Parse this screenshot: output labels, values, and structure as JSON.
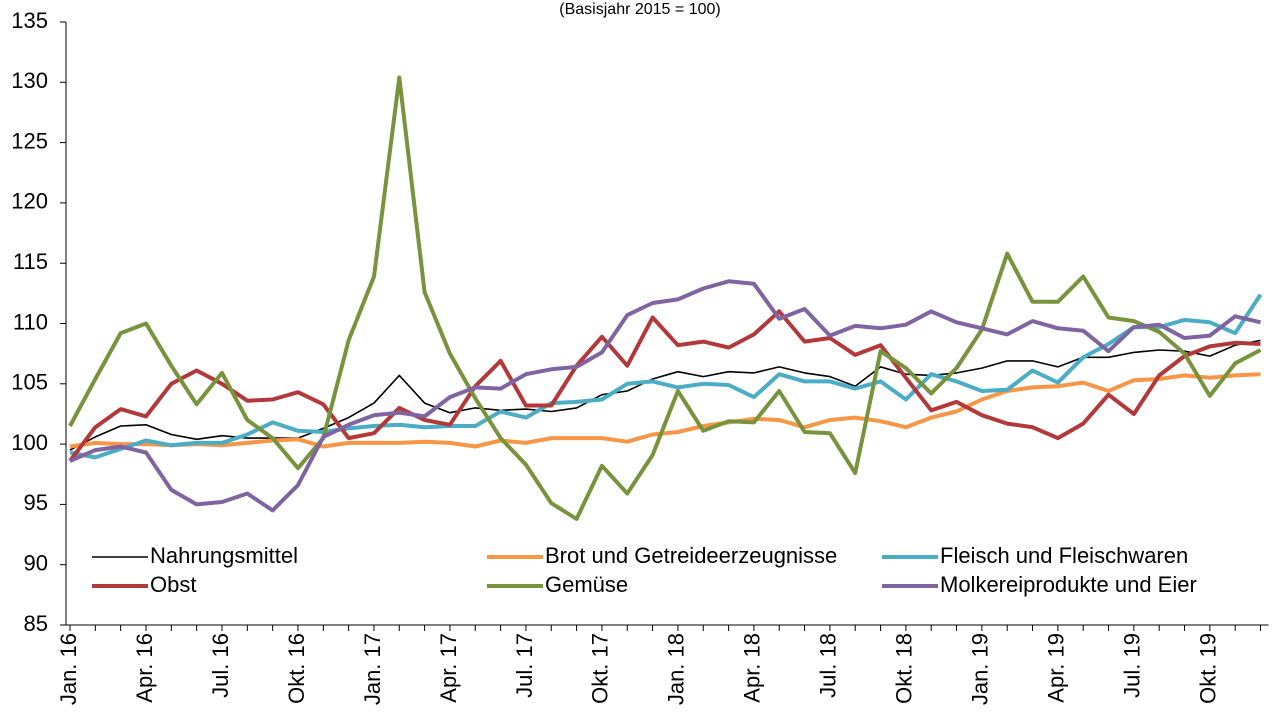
{
  "chart_data": {
    "type": "line",
    "subtitle": "(Basisjahr 2015 = 100)",
    "categories": [
      "Jan. 16",
      null,
      null,
      "Apr. 16",
      null,
      null,
      "Jul. 16",
      null,
      null,
      "Okt. 16",
      null,
      null,
      "Jan. 17",
      null,
      null,
      "Apr. 17",
      null,
      null,
      "Jul. 17",
      null,
      null,
      "Okt. 17",
      null,
      null,
      "Jan. 18",
      null,
      null,
      "Apr. 18",
      null,
      null,
      "Jul. 18",
      null,
      null,
      "Okt. 18",
      null,
      null,
      "Jan. 19",
      null,
      null,
      "Apr. 19",
      null,
      null,
      "Jul. 19",
      null,
      null,
      "Okt. 19",
      null,
      null
    ],
    "ylim": [
      85,
      135
    ],
    "yticks": [
      85,
      90,
      95,
      100,
      105,
      110,
      115,
      120,
      125,
      130,
      135
    ],
    "series": [
      {
        "name": "Nahrungsmittel",
        "color": "#000000",
        "width": 1.6,
        "values": [
          99.5,
          100.6,
          101.5,
          101.6,
          100.8,
          100.4,
          100.7,
          100.5,
          100.5,
          100.5,
          101.3,
          102.2,
          103.4,
          105.7,
          103.4,
          102.6,
          103.0,
          102.8,
          102.9,
          102.7,
          103.0,
          104.1,
          104.4,
          105.4,
          106.0,
          105.6,
          106.0,
          105.9,
          106.4,
          105.9,
          105.6,
          104.8,
          106.4,
          105.8,
          105.7,
          105.9,
          106.3,
          106.9,
          106.9,
          106.4,
          107.2,
          107.2,
          107.6,
          107.8,
          107.7,
          107.3,
          108.2,
          108.6
        ]
      },
      {
        "name": "Brot und Getreideerzeugnisse",
        "color": "#f79646",
        "width": 4,
        "values": [
          99.8,
          100.1,
          100.0,
          100.0,
          99.9,
          100.0,
          99.9,
          100.1,
          100.3,
          100.4,
          99.8,
          100.1,
          100.1,
          100.1,
          100.2,
          100.1,
          99.8,
          100.3,
          100.1,
          100.5,
          100.5,
          100.5,
          100.2,
          100.8,
          101.0,
          101.5,
          101.8,
          102.1,
          102.0,
          101.4,
          102.0,
          102.2,
          101.9,
          101.4,
          102.2,
          102.7,
          103.7,
          104.4,
          104.7,
          104.8,
          105.1,
          104.4,
          105.3,
          105.4,
          105.7,
          105.5,
          105.7,
          105.8
        ]
      },
      {
        "name": "Fleisch und Fleischwaren",
        "color": "#4bacc6",
        "width": 4,
        "values": [
          99.3,
          98.9,
          99.6,
          100.3,
          99.9,
          100.1,
          100.1,
          100.8,
          101.8,
          101.1,
          101.0,
          101.3,
          101.5,
          101.6,
          101.4,
          101.5,
          101.5,
          102.7,
          102.2,
          103.4,
          103.5,
          103.7,
          105.0,
          105.2,
          104.7,
          105.0,
          104.9,
          103.9,
          105.8,
          105.2,
          105.2,
          104.6,
          105.2,
          103.7,
          105.8,
          105.2,
          104.4,
          104.5,
          106.1,
          105.1,
          107.2,
          108.3,
          109.7,
          109.7,
          110.3,
          110.1,
          109.2,
          112.4
        ]
      },
      {
        "name": "Obst",
        "color": "#b2383a",
        "width": 4,
        "values": [
          98.6,
          101.4,
          102.9,
          102.3,
          105.0,
          106.1,
          105.0,
          103.6,
          103.7,
          104.3,
          103.3,
          100.5,
          100.9,
          103.0,
          102.0,
          101.6,
          104.8,
          106.9,
          103.2,
          103.2,
          106.5,
          108.9,
          106.5,
          110.5,
          108.2,
          108.5,
          108.0,
          109.1,
          111.0,
          108.5,
          108.8,
          107.4,
          108.2,
          105.5,
          102.8,
          103.5,
          102.4,
          101.7,
          101.4,
          100.5,
          101.7,
          104.1,
          102.5,
          105.7,
          107.3,
          108.1,
          108.4,
          108.3
        ]
      },
      {
        "name": "Gemüse",
        "color": "#77933c",
        "width": 4,
        "values": [
          101.5,
          105.4,
          109.2,
          110.0,
          106.5,
          103.3,
          105.9,
          102.0,
          100.5,
          98.0,
          100.5,
          108.6,
          113.9,
          130.4,
          112.6,
          107.5,
          103.8,
          100.5,
          98.3,
          95.1,
          93.8,
          98.2,
          95.9,
          99.1,
          104.4,
          101.1,
          101.9,
          101.8,
          104.4,
          101.0,
          100.9,
          97.6,
          107.7,
          106.3,
          104.2,
          106.3,
          109.5,
          115.8,
          111.8,
          111.8,
          113.9,
          110.5,
          110.2,
          109.3,
          107.5,
          104.0,
          106.7,
          107.8
        ]
      },
      {
        "name": "Molkereiprodukte und Eier",
        "color": "#8064a2",
        "width": 4,
        "values": [
          98.6,
          99.5,
          99.8,
          99.3,
          96.2,
          95.0,
          95.2,
          95.9,
          94.5,
          96.6,
          100.6,
          101.6,
          102.4,
          102.6,
          102.3,
          103.9,
          104.7,
          104.6,
          105.8,
          106.2,
          106.4,
          107.6,
          110.7,
          111.7,
          112.0,
          112.9,
          113.5,
          113.3,
          110.4,
          111.2,
          109.0,
          109.8,
          109.6,
          109.9,
          111.0,
          110.1,
          109.6,
          109.1,
          110.2,
          109.6,
          109.4,
          107.7,
          109.7,
          109.9,
          108.8,
          109.0,
          110.6,
          110.1
        ]
      }
    ]
  }
}
